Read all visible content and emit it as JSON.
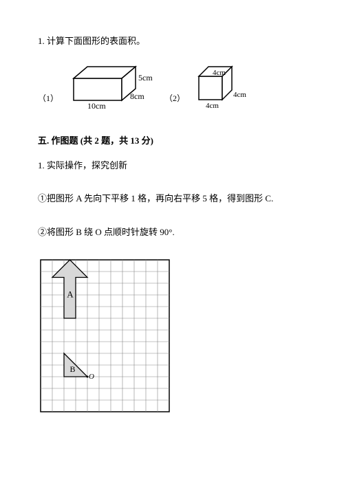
{
  "q1": {
    "text": "1. 计算下面图形的表面积。",
    "fig1_label": "（1）",
    "fig2_label": "（2）",
    "box1": {
      "width_label": "10cm",
      "depth_label": "8cm",
      "height_label": "5cm"
    },
    "cube": {
      "width_label": "4cm",
      "depth_label": "4cm",
      "height_label": "4cm"
    }
  },
  "section5": {
    "header": "五. 作图题 (共 2 题，共 13 分)",
    "q1_text": "1. 实际操作，探究创新",
    "sub1": "①把图形 A 先向下平移 1 格，再向右平移 5 格，得到图形 C.",
    "sub2": "②将图形 B 绕 O 点顺时针旋转 90°."
  },
  "grid": {
    "shape_a_label": "A",
    "shape_b_label": "B",
    "point_o_label": "O",
    "cols": 11,
    "rows": 13,
    "cell": 17,
    "grid_color": "#888888",
    "fill_color": "#d8d8d8",
    "bg": "#ffffff"
  },
  "colors": {
    "stroke": "#000000",
    "text": "#000000"
  }
}
